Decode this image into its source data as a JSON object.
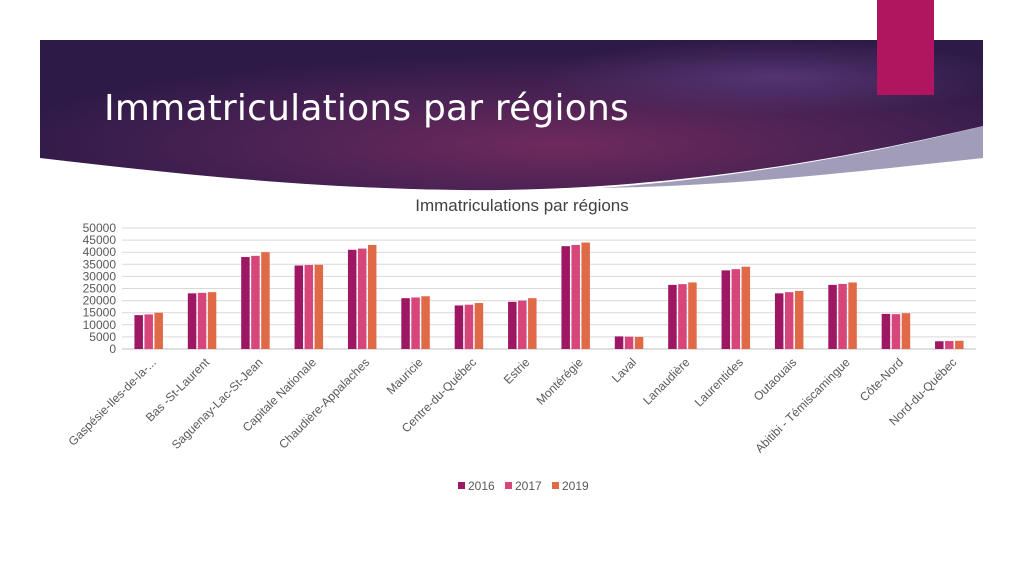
{
  "slide": {
    "title": "Immatriculations par régions"
  },
  "colors": {
    "banner_dark": "#2e1a47",
    "banner_magenta": "#6f2a5b",
    "accent_tab": "#b0155f",
    "series": [
      "#9e1762",
      "#d6467a",
      "#e06a48"
    ],
    "grid": "#d9d9d9",
    "text": "#595959"
  },
  "chart_data": {
    "type": "bar",
    "title": "Immatriculations par régions",
    "categories": [
      "Gaspésie-Iles-de-la-...",
      "Bas -St-Laurent",
      "Saguenay-Lac-St-Jean",
      "Capitale Nationale",
      "Chaudière-Appalaches",
      "Mauricie",
      "Centre-du-Québec",
      "Estrie",
      "Montérégie",
      "Laval",
      "Lanaudière",
      "Laurentides",
      "Outaouais",
      "Abitibi - Témiscamingue",
      "Côte-Nord",
      "Nord-du-Québec"
    ],
    "series": [
      {
        "name": "2016",
        "values": [
          14000,
          23000,
          38000,
          34500,
          41000,
          21000,
          18000,
          19500,
          42500,
          5200,
          26500,
          32500,
          23000,
          26500,
          14500,
          3200
        ]
      },
      {
        "name": "2017",
        "values": [
          14300,
          23200,
          38500,
          34700,
          41500,
          21300,
          18300,
          20000,
          43000,
          5100,
          26800,
          33000,
          23500,
          26900,
          14400,
          3300
        ]
      },
      {
        "name": "2019",
        "values": [
          15000,
          23500,
          40000,
          34800,
          43000,
          21800,
          19000,
          21000,
          44000,
          5000,
          27500,
          34000,
          24000,
          27500,
          14800,
          3400
        ]
      }
    ],
    "ylim": [
      0,
      50000
    ],
    "yticks": [
      "0",
      "5000",
      "10000",
      "15000",
      "20000",
      "25000",
      "30000",
      "35000",
      "40000",
      "45000",
      "50000"
    ],
    "grid": true,
    "legend_position": "bottom"
  }
}
